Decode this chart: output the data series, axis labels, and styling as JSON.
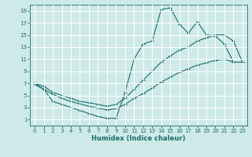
{
  "xlabel": "Humidex (Indice chaleur)",
  "bg_color": "#ceeae8",
  "grid_color": "#ffffff",
  "line_color": "#1a6b6b",
  "xlim": [
    -0.5,
    23.5
  ],
  "ylim": [
    0.0,
    20.0
  ],
  "xticks": [
    0,
    1,
    2,
    3,
    4,
    5,
    6,
    7,
    8,
    9,
    10,
    11,
    12,
    13,
    14,
    15,
    16,
    17,
    18,
    19,
    20,
    21,
    22,
    23
  ],
  "yticks": [
    1,
    3,
    5,
    7,
    9,
    11,
    13,
    15,
    17,
    19
  ],
  "curve1": {
    "x": [
      0,
      1,
      2,
      3,
      4,
      5,
      6,
      7,
      8,
      9,
      10,
      11,
      12,
      13,
      14,
      15,
      16,
      17,
      18,
      19,
      20,
      21,
      22
    ],
    "y": [
      7,
      6,
      4,
      3.5,
      3,
      2.5,
      2,
      1.5,
      1.2,
      1.2,
      5.5,
      11,
      13.5,
      14,
      19.2,
      19.5,
      16.8,
      15.3,
      17.2,
      15.0,
      14.8,
      13.5,
      10.5
    ]
  },
  "curve2": {
    "x": [
      0,
      1,
      2,
      3,
      4,
      5,
      6,
      7,
      8,
      9,
      10,
      11,
      12,
      13,
      14,
      15,
      16,
      17,
      18,
      19,
      20,
      21,
      22,
      23
    ],
    "y": [
      7.0,
      6.5,
      5.5,
      5.0,
      4.5,
      4.0,
      3.8,
      3.5,
      3.2,
      3.5,
      4.5,
      6.0,
      7.5,
      9.0,
      10.5,
      11.5,
      12.5,
      13.0,
      14.0,
      14.5,
      15.0,
      15.0,
      14.0,
      10.5
    ]
  },
  "curve3": {
    "x": [
      0,
      1,
      2,
      3,
      4,
      5,
      6,
      7,
      8,
      9,
      10,
      11,
      12,
      13,
      14,
      15,
      16,
      17,
      18,
      19,
      20,
      21,
      22,
      23
    ],
    "y": [
      6.8,
      6.0,
      5.2,
      4.5,
      4.0,
      3.6,
      3.2,
      2.9,
      2.6,
      2.8,
      3.5,
      4.5,
      5.3,
      6.2,
      7.2,
      8.0,
      8.8,
      9.4,
      10.0,
      10.4,
      10.8,
      11.0,
      10.5,
      10.5
    ]
  }
}
